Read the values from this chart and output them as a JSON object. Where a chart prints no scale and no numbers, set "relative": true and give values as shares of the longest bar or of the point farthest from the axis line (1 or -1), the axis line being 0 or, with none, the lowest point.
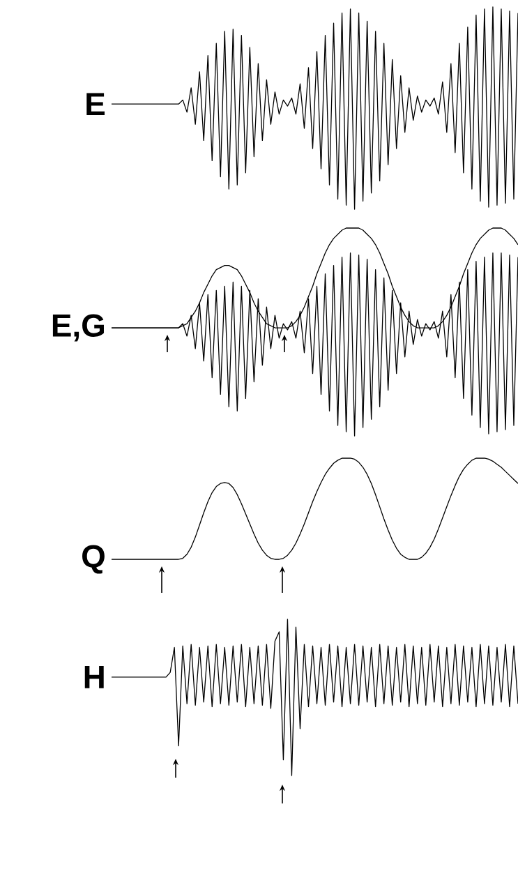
{
  "chart_data": [
    {
      "type": "line",
      "relative": true,
      "categories": [
        null,
        null,
        null,
        null,
        null,
        null,
        null,
        null,
        null,
        null,
        null,
        null,
        null,
        null,
        null,
        null,
        null,
        null,
        null,
        null,
        null,
        null,
        null,
        null,
        null,
        null,
        null,
        null,
        null,
        null,
        null,
        null,
        null,
        null,
        null,
        null,
        null,
        null,
        null,
        null,
        null,
        null,
        null,
        null,
        null,
        null,
        null,
        null,
        null,
        null,
        null,
        null,
        null,
        null,
        null,
        null,
        null,
        null,
        null,
        null,
        null,
        null,
        null,
        null,
        null,
        null,
        null,
        null,
        null,
        null,
        null,
        null,
        null,
        null,
        null,
        null,
        null,
        null,
        null,
        null,
        null,
        null,
        null,
        null,
        null,
        null,
        null,
        null,
        null,
        null,
        null,
        null,
        null,
        null,
        null,
        null,
        null,
        null
      ],
      "series": [
        {
          "name": "E",
          "color": "#000000",
          "values": [
            0.52,
            0.52,
            0.52,
            0.52,
            0.52,
            0.52,
            0.52,
            0.52,
            0.52,
            0.52,
            0.52,
            0.52,
            0.52,
            0.52,
            0.52,
            0.52,
            0.52,
            0.54,
            0.48,
            0.6,
            0.42,
            0.68,
            0.34,
            0.76,
            0.24,
            0.82,
            0.16,
            0.88,
            0.1,
            0.89,
            0.12,
            0.86,
            0.18,
            0.8,
            0.26,
            0.72,
            0.34,
            0.64,
            0.42,
            0.58,
            0.47,
            0.54,
            0.51,
            0.55,
            0.47,
            0.62,
            0.4,
            0.7,
            0.3,
            0.78,
            0.2,
            0.86,
            0.12,
            0.92,
            0.05,
            0.97,
            0.02,
            0.99,
            0.0,
            0.97,
            0.04,
            0.93,
            0.08,
            0.88,
            0.14,
            0.82,
            0.22,
            0.74,
            0.3,
            0.66,
            0.38,
            0.6,
            0.44,
            0.56,
            0.48,
            0.54,
            0.51,
            0.55,
            0.47,
            0.63,
            0.38,
            0.72,
            0.28,
            0.82,
            0.18,
            0.9,
            0.1,
            0.96,
            0.04,
            0.99,
            0.01,
            1.0,
            0.02,
            0.99,
            0.03,
            0.98,
            0.05,
            0.97
          ]
        }
      ]
    },
    {
      "type": "line",
      "relative": true,
      "categories": [
        null,
        null,
        null,
        null,
        null,
        null,
        null,
        null,
        null,
        null,
        null,
        null,
        null,
        null,
        null,
        null,
        null,
        null,
        null,
        null,
        null,
        null,
        null,
        null,
        null,
        null,
        null,
        null,
        null,
        null,
        null,
        null,
        null,
        null,
        null,
        null,
        null,
        null,
        null,
        null,
        null,
        null,
        null,
        null,
        null,
        null,
        null,
        null,
        null,
        null,
        null,
        null,
        null,
        null,
        null,
        null,
        null,
        null,
        null,
        null,
        null,
        null,
        null,
        null,
        null,
        null,
        null,
        null,
        null,
        null,
        null,
        null,
        null,
        null,
        null,
        null,
        null,
        null,
        null,
        null,
        null,
        null,
        null,
        null,
        null,
        null,
        null,
        null,
        null,
        null,
        null,
        null,
        null,
        null,
        null,
        null,
        null,
        null
      ],
      "series": [
        {
          "name": "E,G",
          "color": "#000000",
          "values": [
            0.52,
            0.52,
            0.52,
            0.52,
            0.52,
            0.52,
            0.52,
            0.52,
            0.52,
            0.52,
            0.52,
            0.52,
            0.52,
            0.52,
            0.52,
            0.52,
            0.52,
            0.54,
            0.48,
            0.58,
            0.42,
            0.64,
            0.36,
            0.68,
            0.28,
            0.7,
            0.2,
            0.72,
            0.14,
            0.74,
            0.12,
            0.72,
            0.18,
            0.7,
            0.26,
            0.66,
            0.34,
            0.62,
            0.42,
            0.58,
            0.47,
            0.54,
            0.51,
            0.55,
            0.47,
            0.6,
            0.4,
            0.66,
            0.3,
            0.72,
            0.2,
            0.78,
            0.12,
            0.82,
            0.05,
            0.86,
            0.02,
            0.88,
            0.0,
            0.87,
            0.04,
            0.85,
            0.08,
            0.8,
            0.14,
            0.76,
            0.22,
            0.7,
            0.3,
            0.64,
            0.38,
            0.6,
            0.44,
            0.56,
            0.48,
            0.54,
            0.51,
            0.55,
            0.47,
            0.6,
            0.38,
            0.68,
            0.28,
            0.74,
            0.18,
            0.8,
            0.1,
            0.84,
            0.04,
            0.86,
            0.01,
            0.88,
            0.02,
            0.88,
            0.03,
            0.87,
            0.05,
            0.86
          ]
        },
        {
          "color": "#000000",
          "values": [
            0.52,
            0.52,
            0.52,
            0.52,
            0.52,
            0.52,
            0.52,
            0.52,
            0.52,
            0.52,
            0.52,
            0.52,
            0.52,
            0.52,
            0.52,
            0.52,
            0.52,
            0.53,
            0.54,
            0.57,
            0.6,
            0.64,
            0.69,
            0.73,
            0.77,
            0.8,
            0.81,
            0.82,
            0.82,
            0.81,
            0.8,
            0.77,
            0.73,
            0.69,
            0.64,
            0.6,
            0.57,
            0.54,
            0.53,
            0.52,
            0.52,
            0.52,
            0.52,
            0.53,
            0.55,
            0.58,
            0.62,
            0.67,
            0.72,
            0.78,
            0.83,
            0.88,
            0.92,
            0.95,
            0.97,
            0.99,
            1.0,
            1.0,
            1.0,
            1.0,
            0.99,
            0.97,
            0.95,
            0.92,
            0.88,
            0.83,
            0.78,
            0.72,
            0.67,
            0.62,
            0.58,
            0.55,
            0.53,
            0.52,
            0.52,
            0.52,
            0.52,
            0.52,
            0.53,
            0.55,
            0.58,
            0.62,
            0.67,
            0.72,
            0.78,
            0.83,
            0.88,
            0.92,
            0.95,
            0.97,
            0.99,
            1.0,
            1.0,
            1.0,
            0.99,
            0.97,
            0.95,
            0.92
          ]
        }
      ]
    },
    {
      "type": "line",
      "relative": true,
      "categories": [
        null,
        null,
        null,
        null,
        null,
        null,
        null,
        null,
        null,
        null,
        null,
        null,
        null,
        null,
        null,
        null,
        null,
        null,
        null,
        null,
        null,
        null,
        null,
        null,
        null,
        null,
        null,
        null,
        null,
        null,
        null,
        null,
        null,
        null,
        null,
        null,
        null,
        null,
        null,
        null,
        null,
        null,
        null,
        null,
        null,
        null,
        null,
        null,
        null,
        null,
        null,
        null,
        null,
        null,
        null,
        null,
        null,
        null,
        null,
        null,
        null,
        null,
        null,
        null,
        null,
        null,
        null,
        null,
        null,
        null,
        null,
        null,
        null,
        null,
        null,
        null,
        null,
        null,
        null,
        null,
        null,
        null,
        null,
        null,
        null,
        null,
        null,
        null,
        null,
        null,
        null,
        null,
        null,
        null,
        null,
        null,
        null,
        null
      ],
      "series": [
        {
          "name": "Q",
          "color": "#000000",
          "values": [
            0,
            0,
            0,
            0,
            0,
            0,
            0,
            0,
            0,
            0,
            0,
            0,
            0,
            0,
            0,
            0,
            0,
            0.01,
            0.05,
            0.12,
            0.22,
            0.34,
            0.46,
            0.57,
            0.66,
            0.72,
            0.75,
            0.76,
            0.75,
            0.71,
            0.64,
            0.55,
            0.45,
            0.35,
            0.25,
            0.16,
            0.09,
            0.04,
            0.01,
            0.0,
            0.0,
            0.01,
            0.04,
            0.09,
            0.16,
            0.25,
            0.35,
            0.46,
            0.57,
            0.67,
            0.76,
            0.84,
            0.9,
            0.95,
            0.98,
            1.0,
            1.0,
            1.0,
            0.99,
            0.96,
            0.91,
            0.84,
            0.75,
            0.64,
            0.52,
            0.4,
            0.29,
            0.19,
            0.11,
            0.05,
            0.02,
            0.0,
            0.0,
            0.0,
            0.02,
            0.06,
            0.12,
            0.2,
            0.3,
            0.41,
            0.52,
            0.63,
            0.73,
            0.82,
            0.89,
            0.94,
            0.98,
            1.0,
            1.0,
            1.0,
            0.99,
            0.97,
            0.94,
            0.91,
            0.87,
            0.83,
            0.79,
            0.75
          ]
        }
      ]
    },
    {
      "type": "line",
      "relative": true,
      "categories": [
        null,
        null,
        null,
        null,
        null,
        null,
        null,
        null,
        null,
        null,
        null,
        null,
        null,
        null,
        null,
        null,
        null,
        null,
        null,
        null,
        null,
        null,
        null,
        null,
        null,
        null,
        null,
        null,
        null,
        null,
        null,
        null,
        null,
        null,
        null,
        null,
        null,
        null,
        null,
        null,
        null,
        null,
        null,
        null,
        null,
        null,
        null,
        null,
        null,
        null,
        null,
        null,
        null,
        null,
        null,
        null,
        null,
        null,
        null,
        null,
        null,
        null,
        null,
        null,
        null,
        null,
        null,
        null,
        null,
        null,
        null,
        null,
        null,
        null,
        null,
        null,
        null,
        null,
        null,
        null,
        null,
        null,
        null,
        null,
        null,
        null,
        null,
        null,
        null,
        null,
        null,
        null,
        null,
        null,
        null,
        null,
        null,
        null
      ],
      "series": [
        {
          "name": "H",
          "color": "#000000",
          "values": [
            0.63,
            0.63,
            0.63,
            0.63,
            0.63,
            0.63,
            0.63,
            0.63,
            0.63,
            0.63,
            0.63,
            0.63,
            0.63,
            0.63,
            0.66,
            0.82,
            0.19,
            0.83,
            0.46,
            0.84,
            0.45,
            0.82,
            0.47,
            0.83,
            0.44,
            0.84,
            0.46,
            0.82,
            0.45,
            0.83,
            0.47,
            0.84,
            0.44,
            0.82,
            0.46,
            0.83,
            0.45,
            0.84,
            0.43,
            0.86,
            0.92,
            0.1,
            1.0,
            0.0,
            0.95,
            0.3,
            0.84,
            0.44,
            0.83,
            0.46,
            0.82,
            0.45,
            0.84,
            0.47,
            0.83,
            0.44,
            0.82,
            0.46,
            0.84,
            0.45,
            0.83,
            0.47,
            0.82,
            0.44,
            0.84,
            0.46,
            0.83,
            0.45,
            0.82,
            0.47,
            0.84,
            0.44,
            0.83,
            0.46,
            0.82,
            0.45,
            0.84,
            0.47,
            0.83,
            0.44,
            0.82,
            0.46,
            0.84,
            0.45,
            0.83,
            0.47,
            0.82,
            0.44,
            0.84,
            0.46,
            0.83,
            0.45,
            0.82,
            0.47,
            0.84,
            0.44,
            0.83,
            0.46
          ]
        }
      ]
    }
  ]
}
